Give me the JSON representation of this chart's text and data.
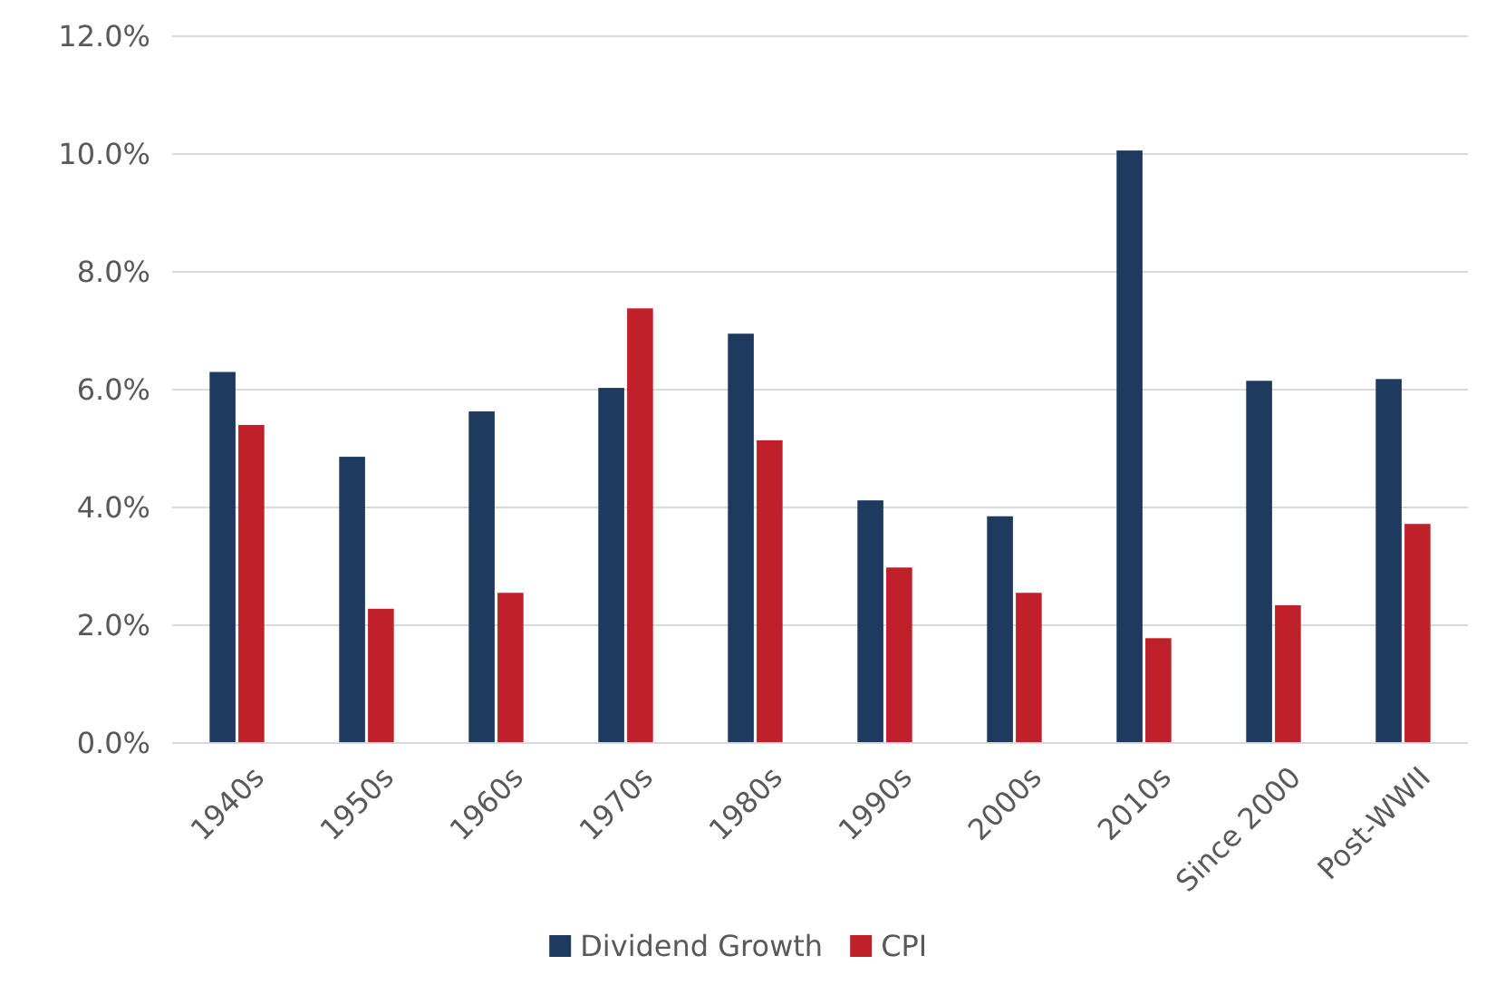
{
  "chart_data": {
    "type": "bar",
    "categories": [
      "1940s",
      "1950s",
      "1960s",
      "1970s",
      "1980s",
      "1990s",
      "2000s",
      "2010s",
      "Since 2000",
      "Post-WWII"
    ],
    "series": [
      {
        "name": "Dividend Growth",
        "color": "#1f3a5f",
        "values": [
          6.3,
          4.86,
          5.63,
          6.03,
          6.95,
          4.12,
          3.85,
          10.06,
          6.15,
          6.18
        ]
      },
      {
        "name": "CPI",
        "color": "#c0202a",
        "values": [
          5.4,
          2.28,
          2.55,
          7.38,
          5.14,
          2.98,
          2.55,
          1.78,
          2.34,
          3.72
        ]
      }
    ],
    "ylim": [
      0,
      12
    ],
    "yticks": [
      {
        "value": 0,
        "label": "0.0%"
      },
      {
        "value": 2,
        "label": "2.0%"
      },
      {
        "value": 4,
        "label": "4.0%"
      },
      {
        "value": 6,
        "label": "6.0%"
      },
      {
        "value": 8,
        "label": "8.0%"
      },
      {
        "value": 10,
        "label": "10.0%"
      },
      {
        "value": 12,
        "label": "12.0%"
      }
    ],
    "grid": "y",
    "legend": "bottom"
  }
}
